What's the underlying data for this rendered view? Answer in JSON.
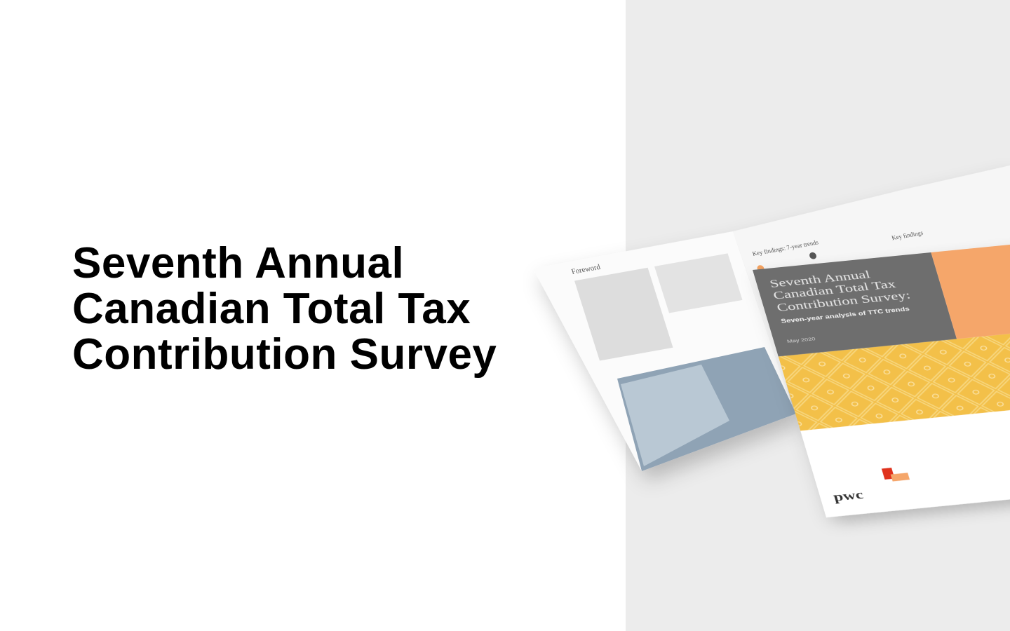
{
  "headline": {
    "lines": [
      "Seventh Annual",
      "Canadian Total Tax",
      "Contribution Survey"
    ]
  },
  "brochure": {
    "left_page": {
      "title": "Foreword"
    },
    "middle_page": {
      "title": "Key findings: 7-year trends"
    },
    "right_page": {
      "title": "Key findings"
    },
    "cover": {
      "title_lines": [
        "Seventh Annual",
        "Canadian Total Tax",
        "Contribution Survey:"
      ],
      "subtitle": "Seven-year analysis of TTC trends",
      "date": "May 2020",
      "logo": "pwc"
    }
  }
}
